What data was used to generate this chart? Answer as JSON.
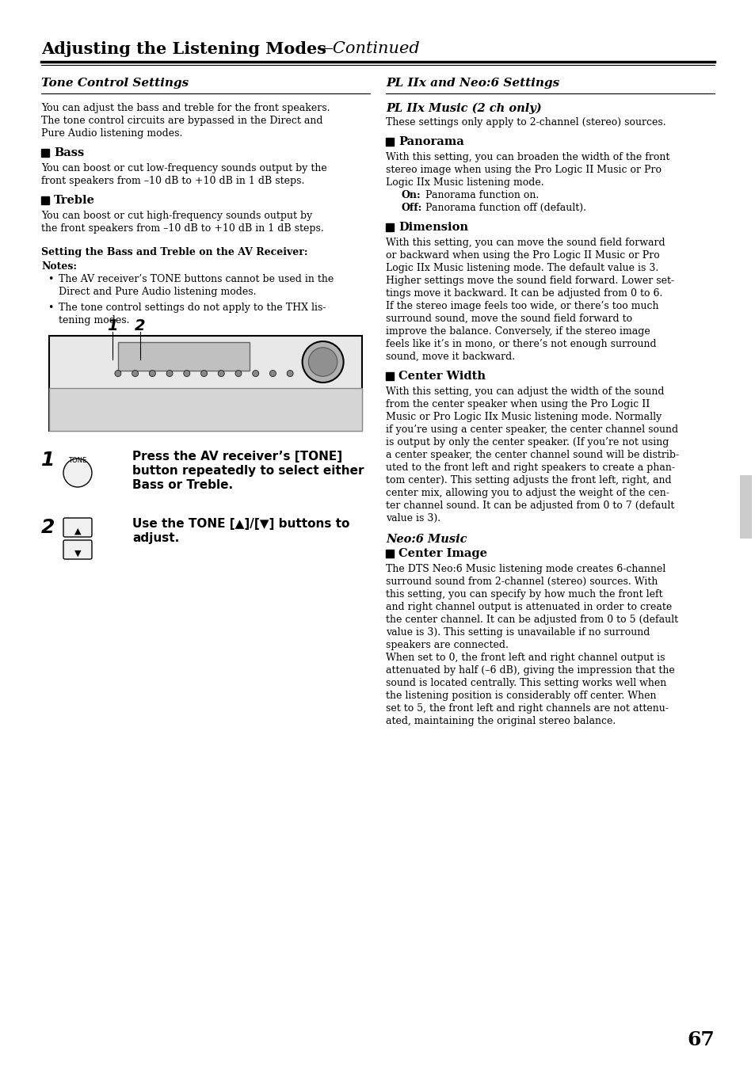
{
  "page_number": "67",
  "title_bold": "Adjusting the Listening Modes",
  "title_italic": "—Continued",
  "left_section_title": "Tone Control Settings",
  "left_intro_1": "You can adjust the bass and treble for the front speakers.",
  "left_intro_2": "The tone control circuits are bypassed in the Direct and",
  "left_intro_3": "Pure Audio listening modes.",
  "bass_title": "Bass",
  "bass_text_1": "You can boost or cut low-frequency sounds output by the",
  "bass_text_2": "front speakers from –10 dB to +10 dB in 1 dB steps.",
  "treble_title": "Treble",
  "treble_text_1": "You can boost or cut high-frequency sounds output by",
  "treble_text_2": "the front speakers from –10 dB to +10 dB in 1 dB steps.",
  "setting_title": "Setting the Bass and Treble on the AV Receiver:",
  "notes_title": "Notes:",
  "note1_1": "The AV receiver’s TONE buttons cannot be used in the",
  "note1_2": "Direct and Pure Audio listening modes.",
  "note2_1": "The tone control settings do not apply to the THX lis-",
  "note2_2": "tening modes.",
  "step1_line1": "Press the AV receiver’s [TONE]",
  "step1_line2": "button repeatedly to select either",
  "step1_line3": "Bass or Treble.",
  "step2_line1": "Use the TONE [▲]/[▼] buttons to",
  "step2_line2": "adjust.",
  "right_section_title": "PL IIx and Neo:6 Settings",
  "pl_subtitle": "PL IIx Music (2 ch only)",
  "pl_intro": "These settings only apply to 2-channel (stereo) sources.",
  "panorama_title": "Panorama",
  "panorama_text_1": "With this setting, you can broaden the width of the front",
  "panorama_text_2": "stereo image when using the Pro Logic II Music or Pro",
  "panorama_text_3": "Logic IIx Music listening mode.",
  "panorama_on": "On:",
  "panorama_on_text": "  Panorama function on.",
  "panorama_off": "Off:",
  "panorama_off_text": "  Panorama function off (default).",
  "dimension_title": "Dimension",
  "dimension_text_1": "With this setting, you can move the sound field forward",
  "dimension_text_2": "or backward when using the Pro Logic II Music or Pro",
  "dimension_text_3": "Logic IIx Music listening mode. The default value is 3.",
  "dimension_text_4": "Higher settings move the sound field forward. Lower set-",
  "dimension_text_5": "tings move it backward. It can be adjusted from 0 to 6.",
  "dimension_text_6": "If the stereo image feels too wide, or there’s too much",
  "dimension_text_7": "surround sound, move the sound field forward to",
  "dimension_text_8": "improve the balance. Conversely, if the stereo image",
  "dimension_text_9": "feels like it’s in mono, or there’s not enough surround",
  "dimension_text_10": "sound, move it backward.",
  "centerwidth_title": "Center Width",
  "centerwidth_text_1": "With this setting, you can adjust the width of the sound",
  "centerwidth_text_2": "from the center speaker when using the Pro Logic II",
  "centerwidth_text_3": "Music or Pro Logic IIx Music listening mode. Normally",
  "centerwidth_text_4": "if you’re using a center speaker, the center channel sound",
  "centerwidth_text_5": "is output by only the center speaker. (If you’re not using",
  "centerwidth_text_6": "a center speaker, the center channel sound will be distrib-",
  "centerwidth_text_7": "uted to the front left and right speakers to create a phan-",
  "centerwidth_text_8": "tom center). This setting adjusts the front left, right, and",
  "centerwidth_text_9": "center mix, allowing you to adjust the weight of the cen-",
  "centerwidth_text_10": "ter channel sound. It can be adjusted from 0 to 7 (default",
  "centerwidth_text_11": "value is 3).",
  "neo_subtitle": "Neo:6 Music",
  "centerimage_title": "Center Image",
  "centerimage_text_1": "The DTS Neo:6 Music listening mode creates 6-channel",
  "centerimage_text_2": "surround sound from 2-channel (stereo) sources. With",
  "centerimage_text_3": "this setting, you can specify by how much the front left",
  "centerimage_text_4": "and right channel output is attenuated in order to create",
  "centerimage_text_5": "the center channel. It can be adjusted from 0 to 5 (default",
  "centerimage_text_6": "value is 3). This setting is unavailable if no surround",
  "centerimage_text_7": "speakers are connected.",
  "centerimage_text_8": "When set to 0, the front left and right channel output is",
  "centerimage_text_9": "attenuated by half (–6 dB), giving the impression that the",
  "centerimage_text_10": "sound is located centrally. This setting works well when",
  "centerimage_text_11": "the listening position is considerably off center. When",
  "centerimage_text_12": "set to 5, the front left and right channels are not attenu-",
  "centerimage_text_13": "ated, maintaining the original stereo balance.",
  "bg_color": "#ffffff",
  "text_color": "#000000"
}
